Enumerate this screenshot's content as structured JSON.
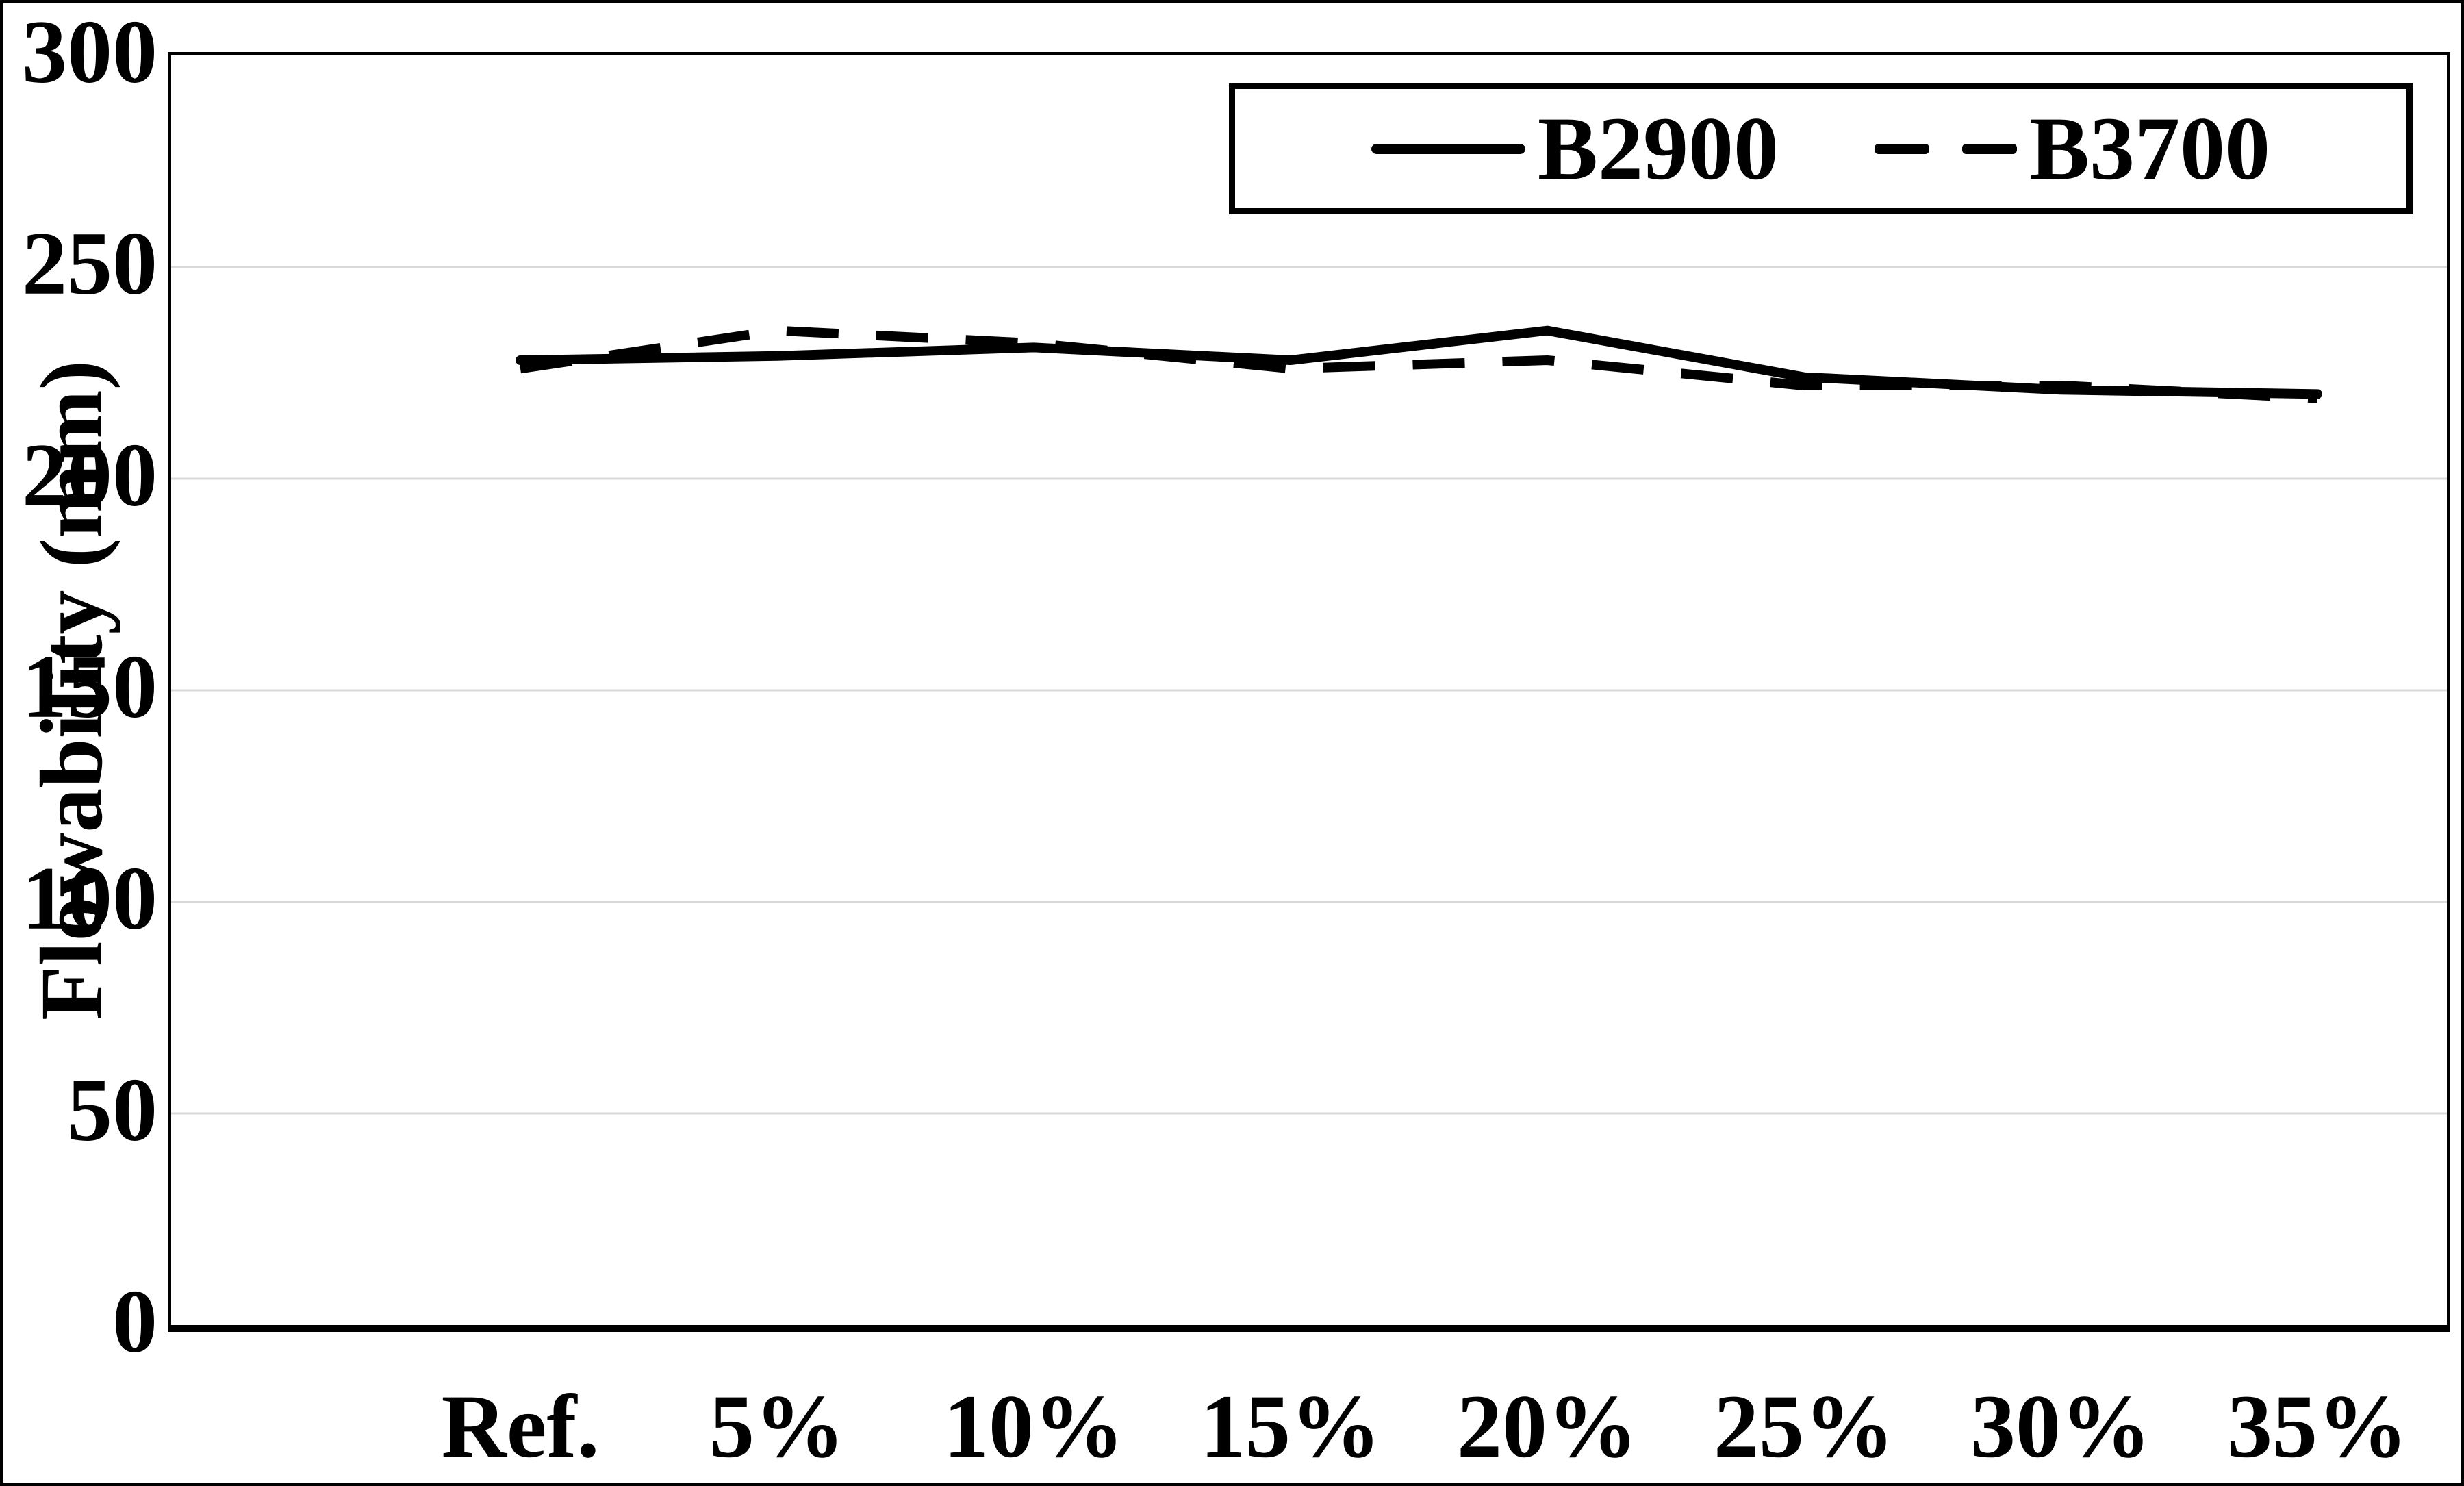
{
  "figure": {
    "background": "#ffffff",
    "frame_color": "#000000",
    "line_color": "#000000",
    "gridline_color": "#d9d9d9"
  },
  "y_axis": {
    "title": "Flowability (mm)",
    "tick_labels": [
      "0",
      "50",
      "100",
      "150",
      "200",
      "250",
      "300"
    ],
    "min": 0,
    "max": 300,
    "step": 50
  },
  "x_axis": {
    "categories": [
      "Ref.",
      "5%",
      "10%",
      "15%",
      "20%",
      "25%",
      "30%",
      "35%"
    ]
  },
  "legend": {
    "items": [
      {
        "label": "B2900",
        "style": "solid"
      },
      {
        "label": "B3700",
        "style": "dashed"
      }
    ],
    "position": "top-right"
  },
  "chart_data": {
    "type": "line",
    "title": "",
    "xlabel": "",
    "ylabel": "Flowability (mm)",
    "ylim": [
      0,
      300
    ],
    "grid": "horizontal",
    "gridline_values": [
      50,
      100,
      150,
      200,
      250
    ],
    "legend_position": "top-right",
    "categories": [
      "Ref.",
      "5%",
      "10%",
      "15%",
      "20%",
      "25%",
      "30%",
      "35%"
    ],
    "series": [
      {
        "name": "B2900",
        "line_style": "solid",
        "values": [
          228,
          229,
          231,
          228,
          235,
          224,
          221,
          220
        ]
      },
      {
        "name": "B3700",
        "line_style": "dashed",
        "values": [
          226,
          235,
          232,
          226,
          228,
          222,
          222,
          219
        ]
      }
    ]
  }
}
